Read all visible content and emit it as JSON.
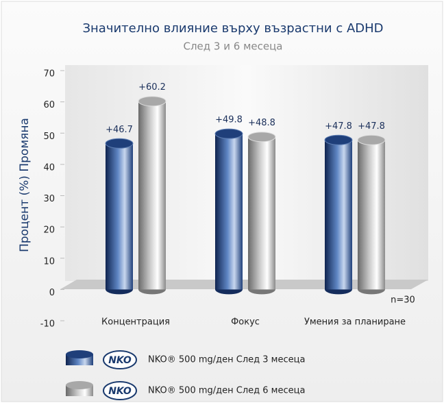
{
  "chart_data": {
    "type": "bar",
    "title": "Значително влияние върху възрастни с ADHD",
    "subtitle": "След 3 и 6 месеца",
    "y_label": "Процент (%) Промяна",
    "annotation": "n=30",
    "legend_logo": "NKO",
    "categories": [
      "Концентрация",
      "Фокус",
      "Умения за планиране"
    ],
    "series": [
      {
        "name": "NKO® 500 mg/ден След 3 месеца",
        "color": "#1f3f7a",
        "values": [
          46.7,
          49.8,
          47.8
        ],
        "value_labels": [
          "+46.7",
          "+49.8",
          "+47.8"
        ]
      },
      {
        "name": "NKO® 500 mg/ден След 6 месеца",
        "color": "#9a9a9a",
        "values": [
          60.2,
          48.8,
          47.8
        ],
        "value_labels": [
          "+60.2",
          "+48.8",
          "+47.8"
        ]
      }
    ],
    "ylim": [
      -10,
      70
    ],
    "yticks": [
      -10,
      0,
      10,
      20,
      30,
      40,
      50,
      60,
      70
    ]
  }
}
